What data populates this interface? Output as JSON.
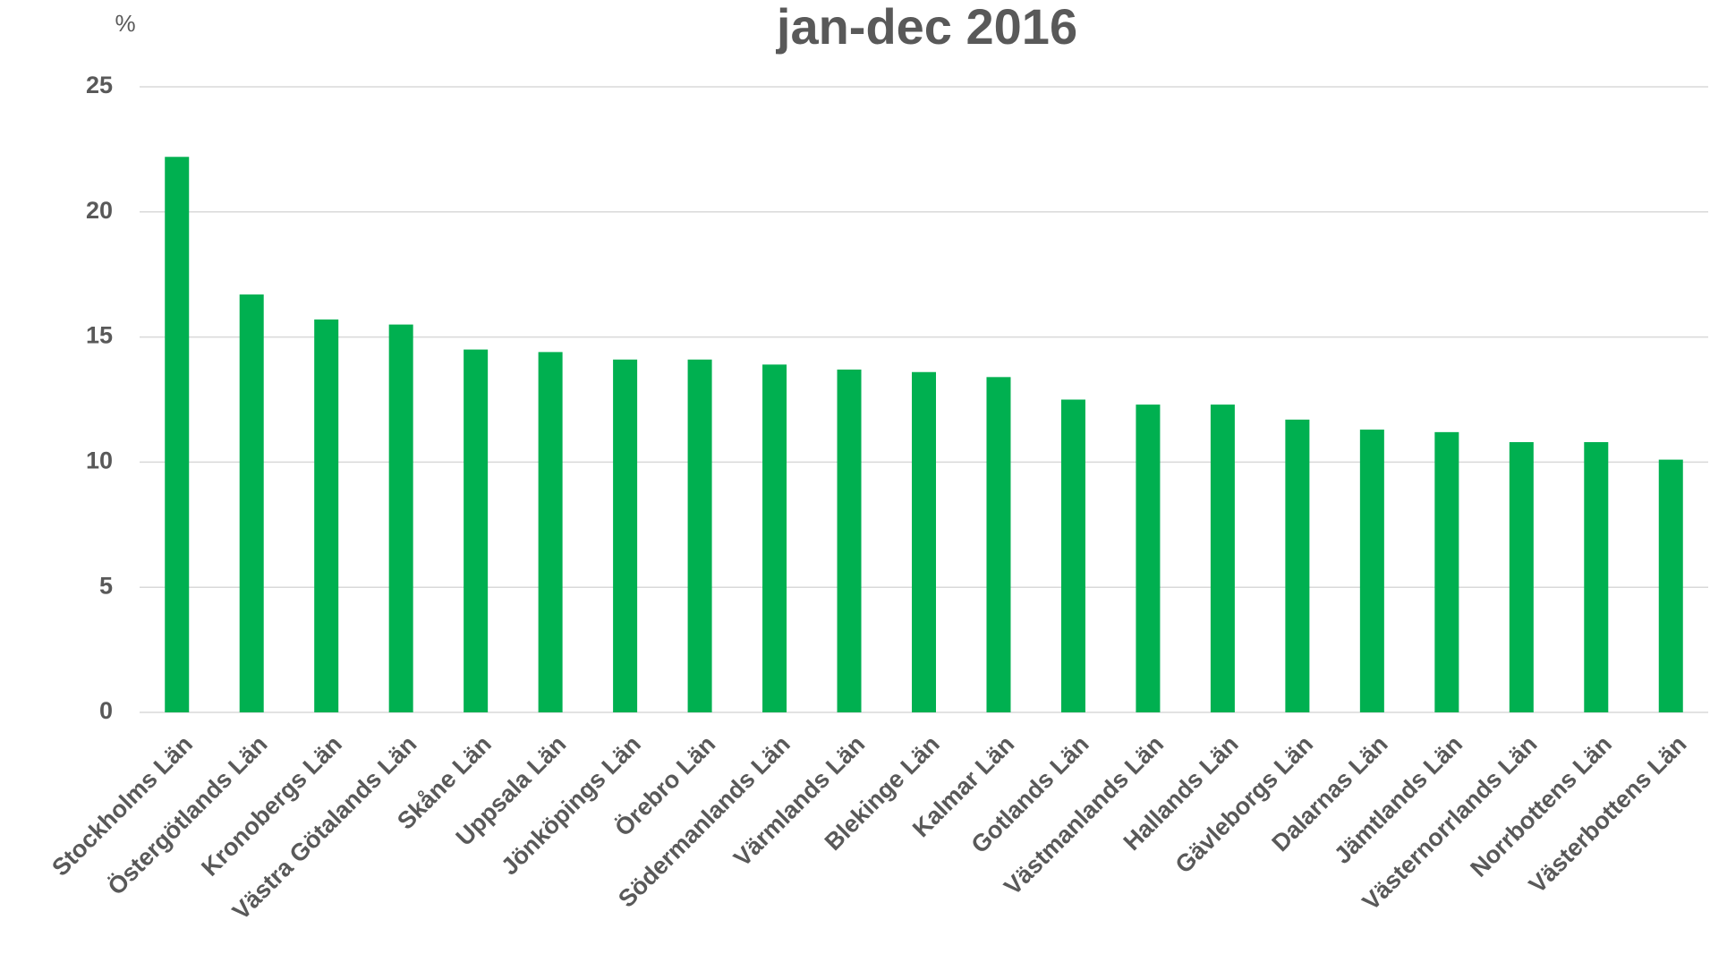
{
  "chart_data": {
    "type": "bar",
    "title": "jan-dec 2016",
    "y_label": "%",
    "categories": [
      "Stockholms Län",
      "Östergötlands Län",
      "Kronobergs Län",
      "Västra Götalands Län",
      "Skåne Län",
      "Uppsala Län",
      "Jönköpings Län",
      "Örebro Län",
      "Södermanlands Län",
      "Värmlands Län",
      "Blekinge Län",
      "Kalmar Län",
      "Gotlands Län",
      "Västmanlands Län",
      "Hallands Län",
      "Gävleborgs Län",
      "Dalarnas Län",
      "Jämtlands Län",
      "Västernorrlands Län",
      "Norrbottens Län",
      "Västerbottens Län"
    ],
    "values": [
      22.2,
      16.7,
      15.7,
      15.5,
      14.5,
      14.4,
      14.1,
      14.1,
      13.9,
      13.7,
      13.6,
      13.4,
      12.5,
      12.3,
      12.3,
      11.7,
      11.3,
      11.2,
      10.8,
      10.8,
      10.1
    ],
    "color": "#00b050",
    "ylim": [
      0,
      25
    ],
    "yticks": [
      0,
      5,
      10,
      15,
      20,
      25
    ],
    "grid": true
  }
}
